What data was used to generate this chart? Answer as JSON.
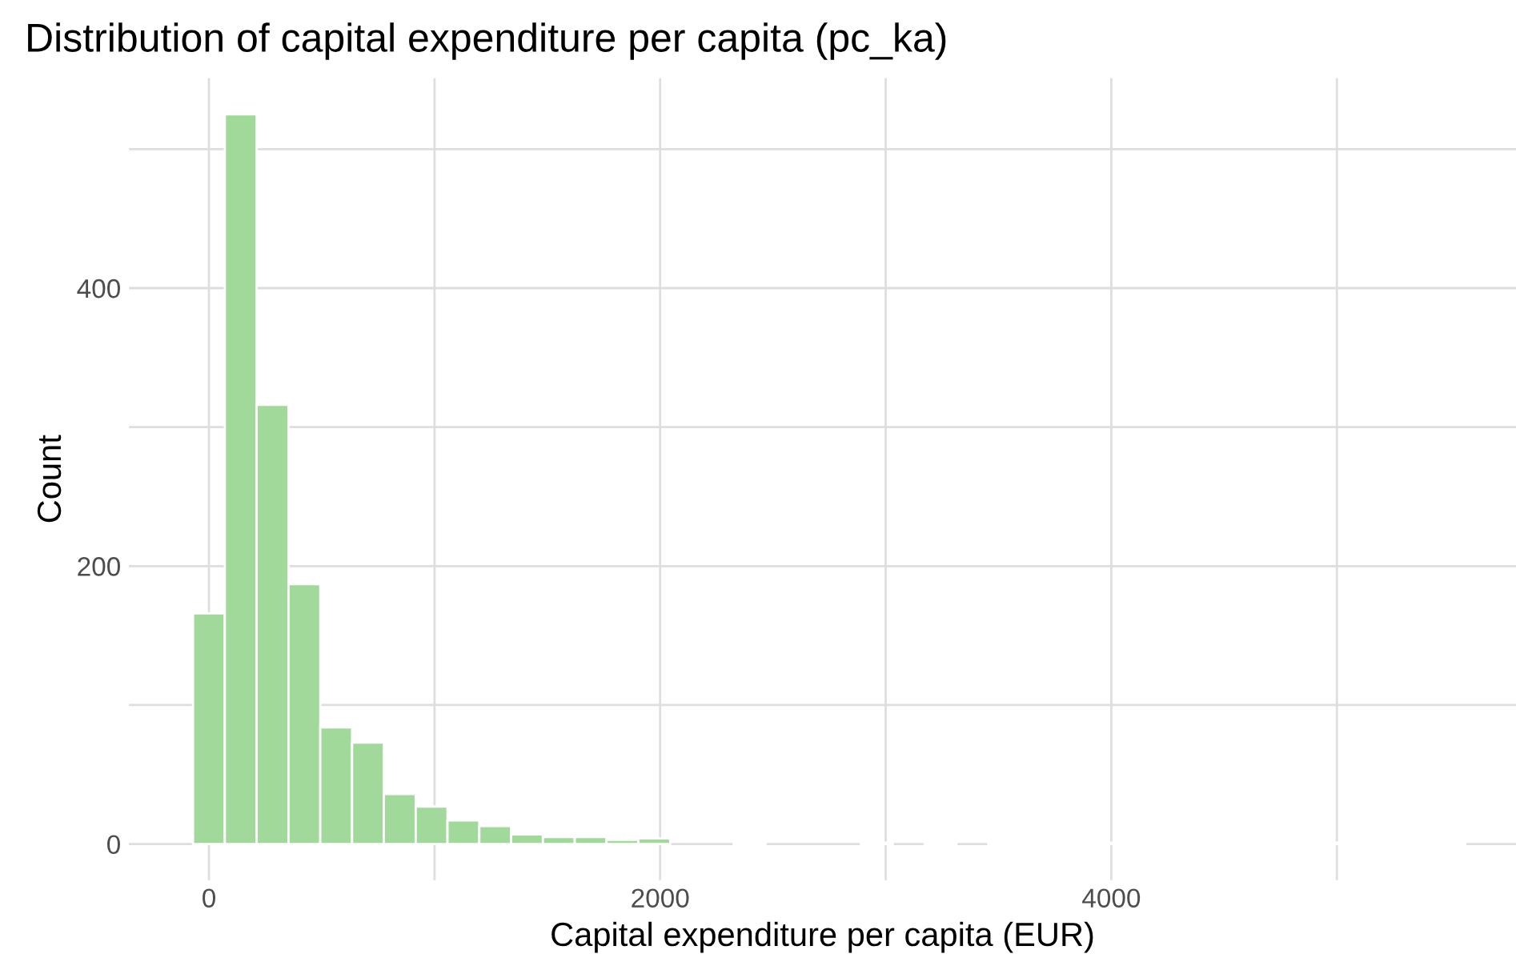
{
  "chart_data": {
    "type": "histogram",
    "title": "Distribution of capital expenditure per capita (pc_ka)",
    "xlabel": "Capital expenditure per capita (EUR)",
    "ylabel": "Count",
    "bins": [
      -70.5,
      70.5,
      211.5,
      352.5,
      493.5,
      634.5,
      775.5,
      916.5,
      1057.5,
      1198.5,
      1339.5,
      1480.5,
      1621.5,
      1762.5,
      1903.5,
      2044.5,
      2185.5,
      2326.5,
      2467.5,
      2608.5,
      2749.5,
      2890.5,
      3031.5,
      3172.5,
      3313.5,
      3454.5,
      3595.5,
      3736.5,
      3877.5,
      4018.5,
      4159.5,
      4300.5,
      4441.5,
      4582.5,
      4723.5,
      4864.5,
      5005.5,
      5146.5,
      5287.5,
      5428.5,
      5569.5
    ],
    "values": [
      166,
      525,
      316,
      187,
      84,
      73,
      36,
      27,
      17,
      13,
      7,
      5,
      5,
      3,
      4,
      0,
      0,
      1,
      0,
      0,
      0,
      1,
      0,
      1,
      0,
      1,
      1,
      1,
      1,
      1,
      1,
      1,
      1,
      1,
      1,
      1,
      1,
      1,
      1,
      1
    ],
    "color": "#a1d99b",
    "xlim": [
      -355,
      5794
    ],
    "ylim": [
      -26,
      551
    ],
    "xticks": [
      0,
      {
        "value": 1000,
        "label": null
      },
      2000,
      {
        "value": 3000,
        "label": null
      },
      4000,
      {
        "value": 5000,
        "label": null
      }
    ],
    "yticks": [
      0,
      {
        "value": 100,
        "label": null
      },
      200,
      {
        "value": 300,
        "label": null
      },
      400,
      {
        "value": 500,
        "label": null
      }
    ],
    "grid": true
  }
}
